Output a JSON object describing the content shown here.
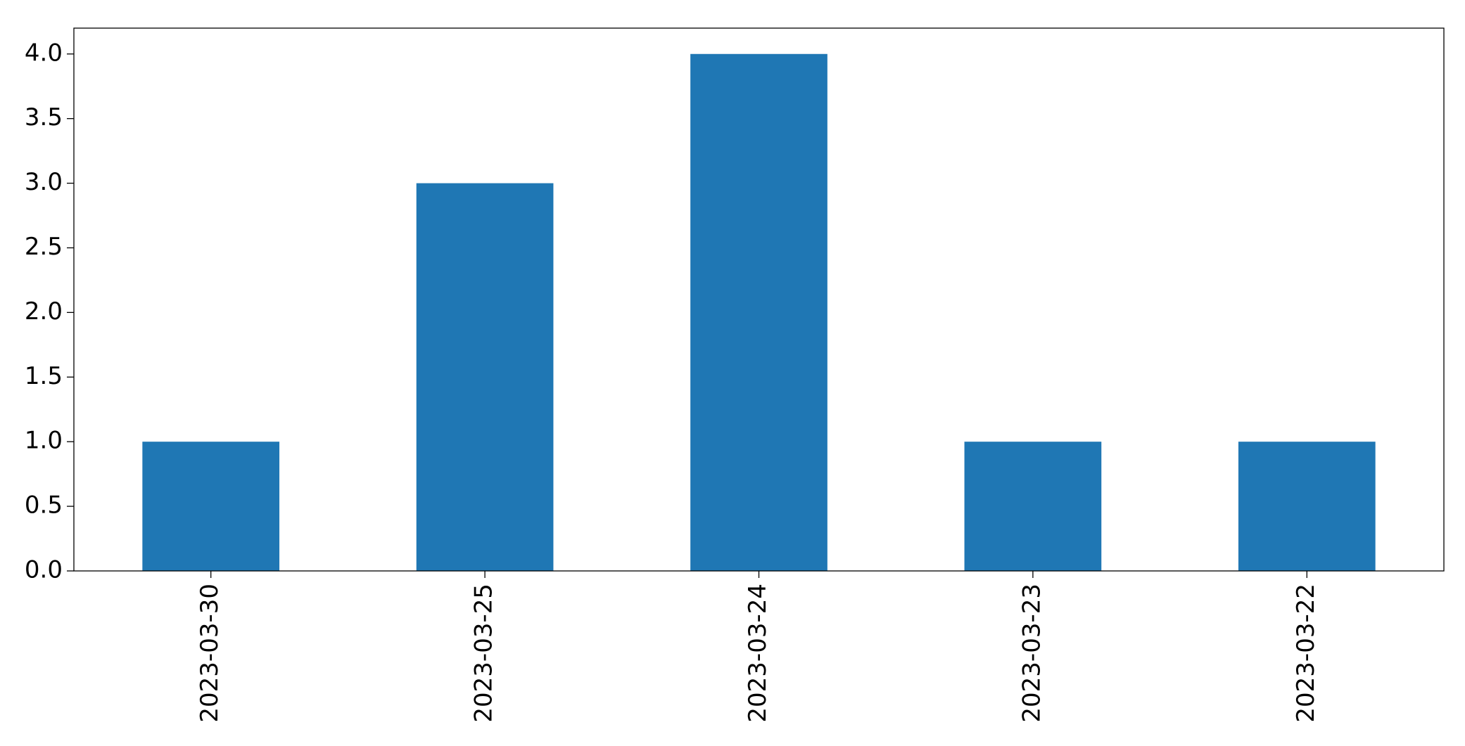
{
  "chart_data": {
    "type": "bar",
    "categories": [
      "2023-03-30",
      "2023-03-25",
      "2023-03-24",
      "2023-03-23",
      "2023-03-22"
    ],
    "values": [
      1,
      3,
      4,
      1,
      1
    ],
    "title": "",
    "xlabel": "",
    "ylabel": "",
    "ylim": [
      0,
      4.2
    ],
    "yticks": [
      "0.0",
      "0.5",
      "1.0",
      "1.5",
      "2.0",
      "2.5",
      "3.0",
      "3.5",
      "4.0"
    ],
    "bar_color": "#1f77b4",
    "grid": false,
    "legend": "none"
  }
}
